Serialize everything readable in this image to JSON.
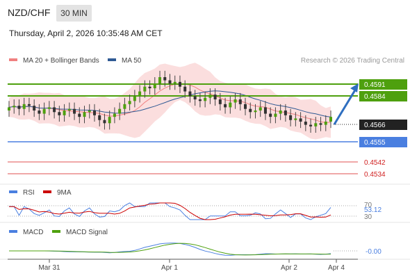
{
  "header": {
    "symbol": "NZD/CHF",
    "timeframe": "30 MIN",
    "datetime": "Thursday, April 2, 2026 10:35:48 AM CET"
  },
  "legend": {
    "bollinger": {
      "label": "MA 20 + Bollinger Bands",
      "color": "#f08080"
    },
    "ma50": {
      "label": "MA 50",
      "color": "#2f5a94"
    },
    "credit": "Research © 2026 Trading Central"
  },
  "levels": [
    {
      "value": "0.4591",
      "kind": "resistance",
      "color": "#4ea00e"
    },
    {
      "value": "0.4584",
      "kind": "resistance",
      "color": "#4ea00e"
    },
    {
      "value": "0.4566",
      "kind": "current",
      "color": "#222222"
    },
    {
      "value": "0.4555",
      "kind": "support",
      "color": "#4a7fe0"
    },
    {
      "value": "0.4542",
      "kind": "support",
      "color": "#e05050"
    },
    {
      "value": "0.4534",
      "kind": "support",
      "color": "#e05050"
    }
  ],
  "rsi": {
    "label": "RSI",
    "ma_label": "9MA",
    "upper": "70",
    "lower": "30",
    "value": "53.12",
    "color": "#4a7fe0",
    "ma_color": "#cc0000"
  },
  "macd": {
    "label": "MACD",
    "signal_label": "MACD Signal",
    "value": "-0.00",
    "color": "#4a7fe0",
    "signal_color": "#4ea00e"
  },
  "x_axis": {
    "ticks": [
      "Mar 31",
      "Apr 1",
      "Apr 2",
      "Apr 4"
    ]
  },
  "chart_data": {
    "type": "line",
    "title": "",
    "ylim": [
      0.4528,
      0.4598
    ],
    "series": [
      {
        "name": "",
        "values": [
          0.4572,
          0.4573,
          0.4571,
          0.4574,
          0.4573,
          0.457,
          0.4568,
          0.4571,
          0.4572,
          0.4569,
          0.4567,
          0.457,
          0.4571,
          0.4568,
          0.4566,
          0.4569,
          0.457,
          0.4567,
          0.4564,
          0.4562,
          0.4566,
          0.4568,
          0.4571,
          0.4574,
          0.4576,
          0.4579,
          0.4582,
          0.4585,
          0.4584,
          0.4587,
          0.4591,
          0.4589,
          0.4587,
          0.4588,
          0.4585,
          0.4582,
          0.4579,
          0.4577,
          0.4576,
          0.4578,
          0.458,
          0.4577,
          0.4574,
          0.4572,
          0.4575,
          0.4577,
          0.4574,
          0.4571,
          0.4569,
          0.457,
          0.4572,
          0.4568,
          0.4566,
          0.4568,
          0.457,
          0.4567,
          0.4564,
          0.4565,
          0.4563,
          0.4561,
          0.456,
          0.4562,
          0.4561,
          0.4563,
          0.4566
        ]
      }
    ]
  }
}
